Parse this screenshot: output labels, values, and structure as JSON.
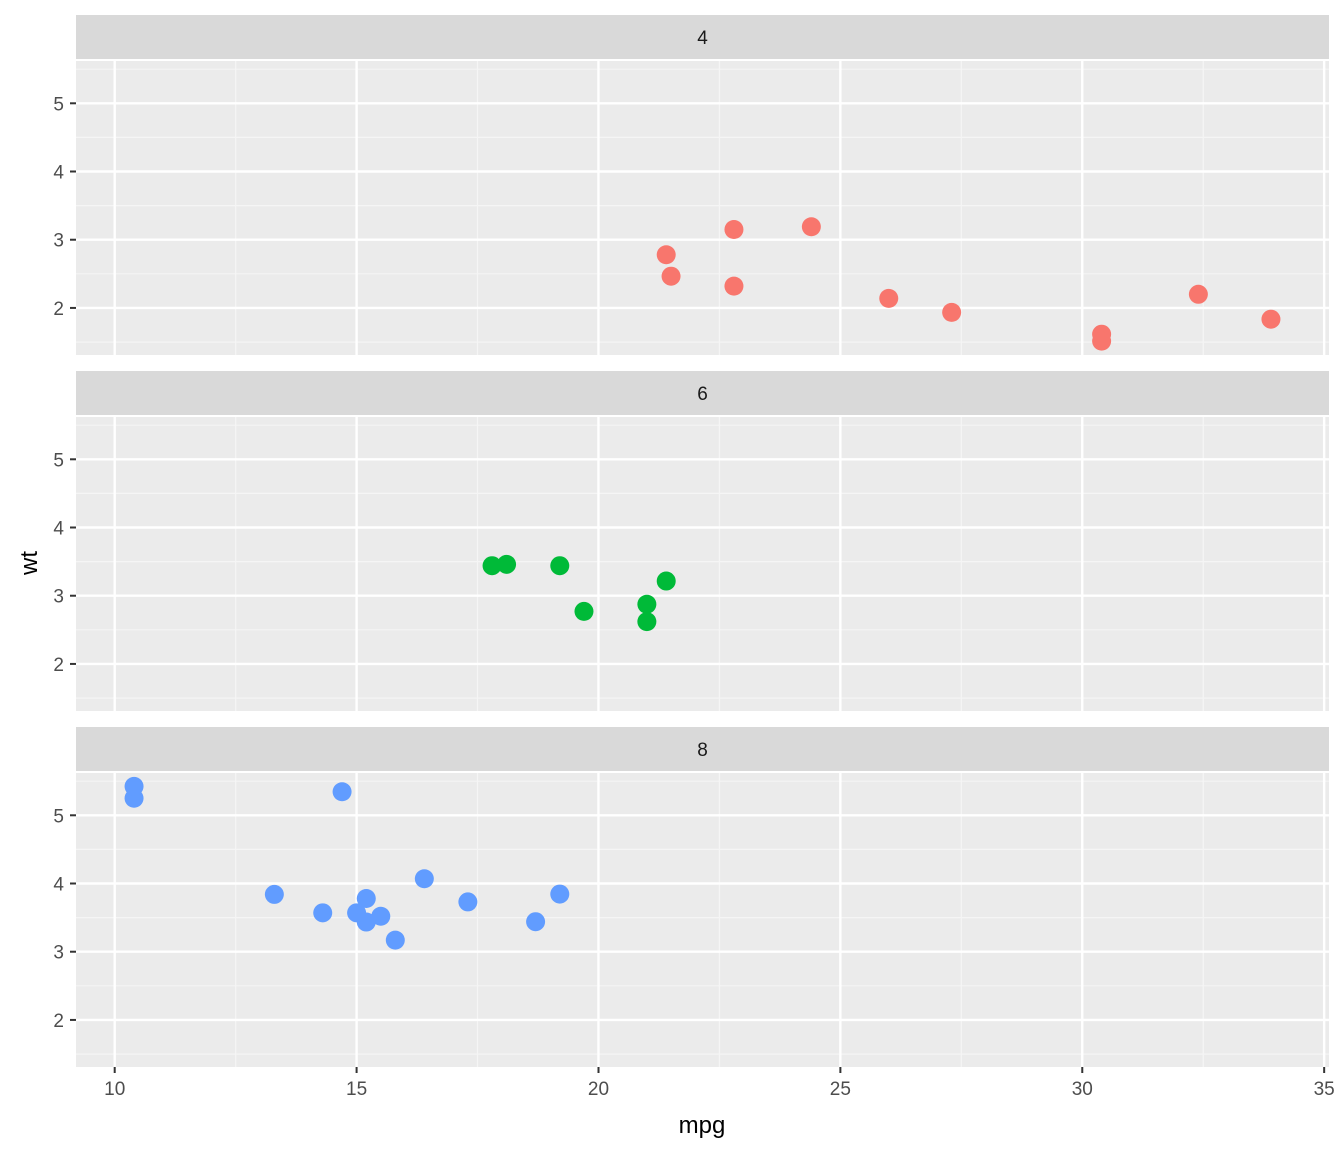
{
  "chart_data": {
    "type": "scatter",
    "facet_by": "cyl",
    "xlabel": "mpg",
    "ylabel": "wt",
    "xlim": [
      9.2,
      35.1
    ],
    "ylim": [
      1.31,
      5.62
    ],
    "x_ticks": [
      10,
      15,
      20,
      25,
      30,
      35
    ],
    "y_ticks": [
      2,
      3,
      4,
      5
    ],
    "grid": true,
    "legend": "none",
    "panels": [
      {
        "strip_label": "4",
        "color": "#F8766D",
        "points": [
          {
            "x": 22.8,
            "y": 2.32
          },
          {
            "x": 24.4,
            "y": 3.19
          },
          {
            "x": 22.8,
            "y": 3.15
          },
          {
            "x": 32.4,
            "y": 2.2
          },
          {
            "x": 30.4,
            "y": 1.615
          },
          {
            "x": 33.9,
            "y": 1.835
          },
          {
            "x": 21.5,
            "y": 2.465
          },
          {
            "x": 27.3,
            "y": 1.935
          },
          {
            "x": 26.0,
            "y": 2.14
          },
          {
            "x": 30.4,
            "y": 1.513
          },
          {
            "x": 21.4,
            "y": 2.78
          }
        ]
      },
      {
        "strip_label": "6",
        "color": "#00BA38",
        "points": [
          {
            "x": 21.0,
            "y": 2.62
          },
          {
            "x": 21.0,
            "y": 2.875
          },
          {
            "x": 21.4,
            "y": 3.215
          },
          {
            "x": 18.1,
            "y": 3.46
          },
          {
            "x": 19.2,
            "y": 3.44
          },
          {
            "x": 17.8,
            "y": 3.44
          },
          {
            "x": 19.7,
            "y": 2.77
          }
        ]
      },
      {
        "strip_label": "8",
        "color": "#619CFF",
        "points": [
          {
            "x": 18.7,
            "y": 3.44
          },
          {
            "x": 14.3,
            "y": 3.57
          },
          {
            "x": 16.4,
            "y": 4.07
          },
          {
            "x": 17.3,
            "y": 3.73
          },
          {
            "x": 15.2,
            "y": 3.78
          },
          {
            "x": 10.4,
            "y": 5.25
          },
          {
            "x": 10.4,
            "y": 5.424
          },
          {
            "x": 14.7,
            "y": 5.345
          },
          {
            "x": 15.5,
            "y": 3.52
          },
          {
            "x": 15.2,
            "y": 3.435
          },
          {
            "x": 13.3,
            "y": 3.84
          },
          {
            "x": 19.2,
            "y": 3.845
          },
          {
            "x": 15.8,
            "y": 3.17
          },
          {
            "x": 15.0,
            "y": 3.57
          }
        ]
      }
    ]
  },
  "colors": {
    "panel_background": "#EBEBEB",
    "strip_background": "#D9D9D9",
    "grid_major": "#FFFFFF",
    "grid_minor": "#F5F5F5",
    "axis_text": "#4D4D4D",
    "title_text": "#000000"
  }
}
